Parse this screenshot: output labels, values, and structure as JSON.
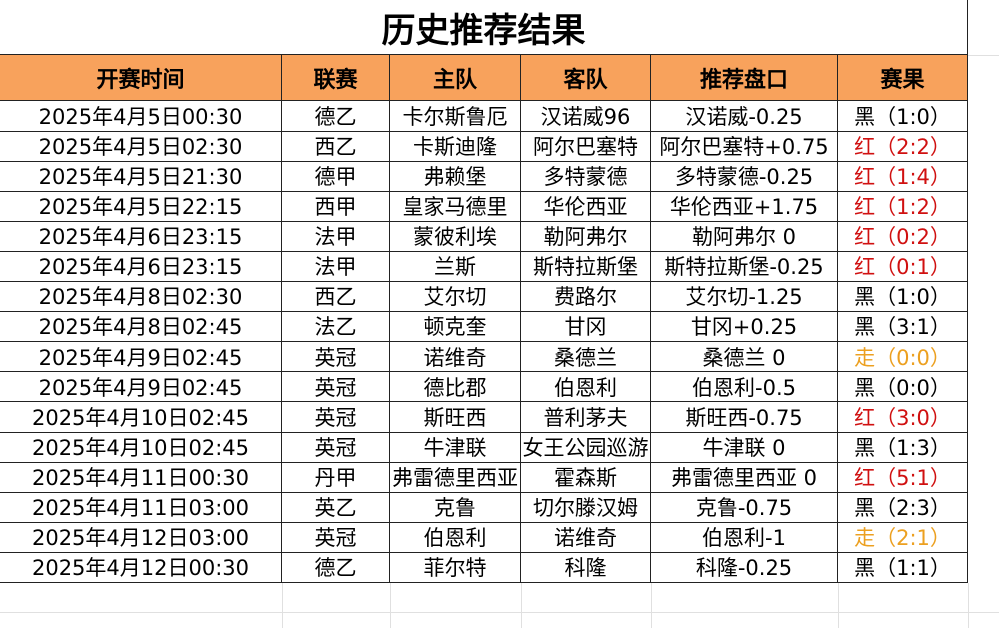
{
  "header": {
    "title": "历史推荐结果"
  },
  "table": {
    "columns": [
      "开赛时间",
      "联赛",
      "主队",
      "客队",
      "推荐盘口",
      "赛果"
    ],
    "rows": [
      [
        "2025年4月5日00:30",
        "德乙",
        "卡尔斯鲁厄",
        "汉诺威96",
        "汉诺威-0.25",
        "黑（1:0）"
      ],
      [
        "2025年4月5日02:30",
        "西乙",
        "卡斯迪隆",
        "阿尔巴塞特",
        "阿尔巴塞特+0.75",
        "红（2:2）"
      ],
      [
        "2025年4月5日21:30",
        "德甲",
        "弗赖堡",
        "多特蒙德",
        "多特蒙德-0.25",
        "红（1:4）"
      ],
      [
        "2025年4月5日22:15",
        "西甲",
        "皇家马德里",
        "华伦西亚",
        "华伦西亚+1.75",
        "红（1:2）"
      ],
      [
        "2025年4月6日23:15",
        "法甲",
        "蒙彼利埃",
        "勒阿弗尔",
        "勒阿弗尔 0",
        "红（0:2）"
      ],
      [
        "2025年4月6日23:15",
        "法甲",
        "兰斯",
        "斯特拉斯堡",
        "斯特拉斯堡-0.25",
        "红（0:1）"
      ],
      [
        "2025年4月8日02:30",
        "西乙",
        "艾尔切",
        "费路尔",
        "艾尔切-1.25",
        "黑（1:0）"
      ],
      [
        "2025年4月8日02:45",
        "法乙",
        "顿克奎",
        "甘冈",
        "甘冈+0.25",
        "黑（3:1）"
      ],
      [
        "2025年4月9日02:45",
        "英冠",
        "诺维奇",
        "桑德兰",
        "桑德兰 0",
        "走（0:0）"
      ],
      [
        "2025年4月9日02:45",
        "英冠",
        "德比郡",
        "伯恩利",
        "伯恩利-0.5",
        "黑（0:0）"
      ],
      [
        "2025年4月10日02:45",
        "英冠",
        "斯旺西",
        "普利茅夫",
        "斯旺西-0.75",
        "红（3:0）"
      ],
      [
        "2025年4月10日02:45",
        "英冠",
        "牛津联",
        "女王公园巡游",
        "牛津联 0",
        "黑（1:3）"
      ],
      [
        "2025年4月11日00:30",
        "丹甲",
        "弗雷德里西亚",
        "霍森斯",
        "弗雷德里西亚 0",
        "红（5:1）"
      ],
      [
        "2025年4月11日03:00",
        "英乙",
        "克鲁",
        "切尔滕汉姆",
        "克鲁-0.75",
        "黑（2:3）"
      ],
      [
        "2025年4月12日03:00",
        "英冠",
        "伯恩利",
        "诺维奇",
        "伯恩利-1",
        "走（2:1）"
      ],
      [
        "2025年4月12日00:30",
        "德乙",
        "菲尔特",
        "科隆",
        "科隆-0.25",
        "黑（1:1）"
      ]
    ],
    "header_color": "#f8a25c",
    "result_colors": {
      "黑": "#000000",
      "红": "#d01010",
      "走": "#eca020"
    }
  }
}
